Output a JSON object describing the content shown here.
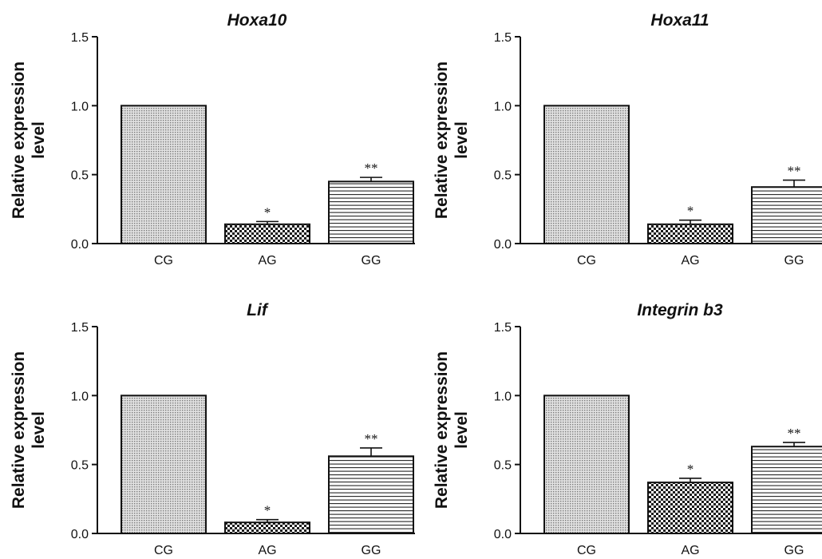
{
  "chart_data": [
    {
      "type": "bar",
      "title": "Hoxa10",
      "ylabel": "Relative expression level",
      "ylabel_lines": [
        "Relative expression",
        "level"
      ],
      "categories": [
        "CG",
        "AG",
        "GG"
      ],
      "values": [
        1.0,
        0.14,
        0.45
      ],
      "errors": [
        0,
        0.02,
        0.03
      ],
      "significance": [
        "",
        "*",
        "**"
      ],
      "ylim": [
        0,
        1.5
      ],
      "yticks": [
        "0.0",
        "0.5",
        "1.0",
        "1.5"
      ],
      "bar_patterns": [
        "fine-dots",
        "checker",
        "horizontal-lines"
      ]
    },
    {
      "type": "bar",
      "title": "Hoxa11",
      "ylabel": "Relative expression level",
      "ylabel_lines": [
        "Relative expression",
        "level"
      ],
      "categories": [
        "CG",
        "AG",
        "GG"
      ],
      "values": [
        1.0,
        0.14,
        0.41
      ],
      "errors": [
        0,
        0.03,
        0.05
      ],
      "significance": [
        "",
        "*",
        "**"
      ],
      "ylim": [
        0,
        1.5
      ],
      "yticks": [
        "0.0",
        "0.5",
        "1.0",
        "1.5"
      ],
      "bar_patterns": [
        "fine-dots",
        "checker",
        "horizontal-lines"
      ]
    },
    {
      "type": "bar",
      "title": "Lif",
      "ylabel": "Relative expression level",
      "ylabel_lines": [
        "Relative expression",
        "level"
      ],
      "categories": [
        "CG",
        "AG",
        "GG"
      ],
      "values": [
        1.0,
        0.08,
        0.56
      ],
      "errors": [
        0,
        0.02,
        0.06
      ],
      "significance": [
        "",
        "*",
        "**"
      ],
      "ylim": [
        0,
        1.5
      ],
      "yticks": [
        "0.0",
        "0.5",
        "1.0",
        "1.5"
      ],
      "bar_patterns": [
        "fine-dots",
        "checker",
        "horizontal-lines"
      ]
    },
    {
      "type": "bar",
      "title": "Integrin b3",
      "ylabel": "Relative expression level",
      "ylabel_lines": [
        "Relative expression",
        "level"
      ],
      "categories": [
        "CG",
        "AG",
        "GG"
      ],
      "values": [
        1.0,
        0.37,
        0.63
      ],
      "errors": [
        0,
        0.03,
        0.03
      ],
      "significance": [
        "",
        "*",
        "**"
      ],
      "ylim": [
        0,
        1.5
      ],
      "yticks": [
        "0.0",
        "0.5",
        "1.0",
        "1.5"
      ],
      "bar_patterns": [
        "fine-dots",
        "checker",
        "horizontal-lines"
      ]
    }
  ]
}
